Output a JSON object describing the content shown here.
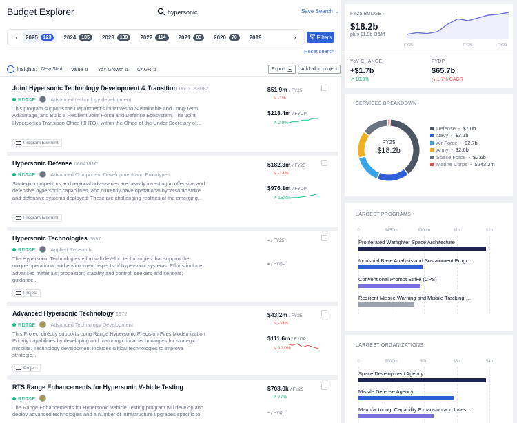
{
  "header": {
    "title": "Budget Explorer",
    "search_value": "hypersonic",
    "save_search": "Save Search"
  },
  "years": [
    {
      "year": "2025",
      "count": "123",
      "active": true
    },
    {
      "year": "2024",
      "count": "135"
    },
    {
      "year": "2023",
      "count": "139"
    },
    {
      "year": "2022",
      "count": "114"
    },
    {
      "year": "2021",
      "count": "83"
    },
    {
      "year": "2020",
      "count": "70"
    },
    {
      "year": "2019",
      "count": ""
    }
  ],
  "filters_label": "Filters",
  "reset_label": "Reset search",
  "toolbar": {
    "insights": "Insights:",
    "sorts": [
      "New Start",
      "Value",
      "YoY Growth",
      "CAGR"
    ],
    "export": "Export",
    "add_all": "Add all to project"
  },
  "cards": [
    {
      "title": "Joint Hypersonic Technology Development & Transition",
      "code": "0603183D8Z",
      "rdte": "RDT&E",
      "activity": "Advanced technology development",
      "desc": "This program supports the Department's initiatives to Sustainable and Long-Term Advantage, and Build a Resilient Joint Force and Defense Ecosystem. The Joint Hypersonics Transition Office (JHTO), within the Office of the Under Secretary of...",
      "type": "Program Element",
      "fy25": "$51.9m",
      "fy25_unit": "/ FY25",
      "fy25_chg": "↘ -1%",
      "fydp": "$218.4m",
      "fydp_unit": "/ FYDP",
      "fydp_chg": "↗ 2.0%",
      "spark": [
        3,
        4,
        4,
        5,
        5,
        6,
        6
      ],
      "neg": [
        true,
        false
      ]
    },
    {
      "title": "Hypersonic Defense",
      "code": "0604181C",
      "rdte": "RDT&E",
      "activity": "Advanced Component Development and Prototypes",
      "desc": "Strategic competitors and regional adversaries are heavily investing in offensive and defensive hypersonic capabilities, and currently have operational hypersonic strike and defensive systems deployed. These are challenging realities of the emerging...",
      "type": "Program Element",
      "fy25": "$182.3m",
      "fy25_unit": "/ FY25",
      "fy25_chg": "↘ -13%",
      "fydp": "$976.1m",
      "fydp_unit": "/ FYDP",
      "fydp_chg": "↗ 15.8%",
      "spark": [
        2,
        3,
        3,
        4,
        5,
        6,
        8
      ],
      "neg": [
        true,
        false
      ]
    },
    {
      "title": "Hypersonic Technologies",
      "code": "5897",
      "rdte": "RDT&E",
      "activity": "Applied Research",
      "desc": "The Hypersonic Technologies effort will develop technologies that support the unique operational and environment aspects of hypersonic systems. Efforts include: advanced materials; propulsion; stability and control; seekers and sensors; guidance...",
      "type": "Project",
      "fy25": "-",
      "fy25_unit": "/ FY25",
      "fy25_chg": "",
      "fydp": "-",
      "fydp_unit": "/ FYDP",
      "fydp_chg": "",
      "spark": [],
      "neg": [
        false,
        false
      ]
    },
    {
      "title": "Advanced Hypersonic Technology",
      "code": "1972",
      "rdte": "RDT&E",
      "activity": "Advanced Technology Development",
      "desc": "This Project directly supports Long Range Hypersonic Precision Fires Modernization Priority capabilities by developing and maturing critical technologies for strategic missiles. Technology development includes critical technologies to improve strategic...",
      "type": "Project",
      "fy25": "$43.2m",
      "fy25_unit": "/ FY25",
      "fy25_chg": "↘ -33%",
      "fydp": "$111.6m",
      "fydp_unit": "/ FYDP",
      "fydp_chg": "↘ 10.0%",
      "spark": [
        6,
        5,
        6,
        4,
        5,
        4,
        3
      ],
      "neg": [
        true,
        true
      ]
    },
    {
      "title": "RTS Range Enhancements for Hypersonic Vehicle Testing",
      "code": "",
      "rdte": "RDT&E",
      "activity": "",
      "desc": "The Range Enhancements for Hypersonic Vehicle Testing program will develop and deploy advanced technologies and a number of infrastructure upgrades specific to",
      "type": "",
      "fy25": "$708.0k",
      "fy25_unit": "/ FY25",
      "fy25_chg": "↗ 77%",
      "fydp": "-",
      "fydp_unit": "/ FYDP",
      "fydp_chg": "",
      "spark": [],
      "neg": [
        false,
        false
      ]
    }
  ],
  "summary": {
    "budget_label": "FY25 BUDGET",
    "budget_value": "$18.2b",
    "budget_sub": "plus $1.9b O&M",
    "trend_ticks": [
      "FY25",
      "FY25",
      "FY29"
    ],
    "trend": [
      4.5,
      4.7,
      4.6,
      4.8,
      5.6,
      6.2,
      6.0,
      6.3,
      6.6,
      6.7,
      6.9
    ],
    "yoy_label": "YoY CHANGE",
    "yoy_value": "+$1.7b",
    "yoy_chg": "↗ 10.0%",
    "fydp_label": "FYDP",
    "fydp_value": "$65.7b",
    "fydp_chg": "↘ 1.7% CAGR"
  },
  "services": {
    "title": "SERVICES BREAKDOWN",
    "center_label": "FY25",
    "center_value": "$18.2b",
    "items": [
      {
        "name": "Defense",
        "value": "$7.0b",
        "amount": 7.0,
        "color": "#4b5563"
      },
      {
        "name": "Navy",
        "value": "$3.1b",
        "amount": 3.1,
        "color": "#2f5fd6"
      },
      {
        "name": "Air Force",
        "value": "$2.7b",
        "amount": 2.7,
        "color": "#38a3e8"
      },
      {
        "name": "Army",
        "value": "$2.6b",
        "amount": 2.6,
        "color": "#f2b01e"
      },
      {
        "name": "Space Force",
        "value": "$2.6b",
        "amount": 2.6,
        "color": "#6b7280"
      },
      {
        "name": "Marine Corps",
        "value": "$243.2m",
        "amount": 0.243,
        "color": "#e05252"
      }
    ]
  },
  "largest_programs": {
    "title": "LARGEST PROGRAMS",
    "ticks": [
      "0",
      "$450m",
      "$900m",
      "$1b",
      "$2b"
    ],
    "max": 2.0,
    "items": [
      {
        "name": "Proliferated Warfighter Space Architecture",
        "value": 1.95,
        "color": "#1e2252"
      },
      {
        "name": "Industrial Base Analysis and Sustainment Progr...",
        "value": 0.98,
        "color": "#2f5fd6"
      },
      {
        "name": "Conventional Prompt Strike (CPS)",
        "value": 0.95,
        "color": "#7c6fe0"
      },
      {
        "name": "Resilient Missile Warning and Missile Tracking - ...",
        "value": 0.85,
        "color": "#9ca3af"
      }
    ]
  },
  "largest_orgs": {
    "title": "LARGEST ORGANIZATIONS",
    "ticks": [
      "0",
      "$900m",
      "$2b",
      "$3b",
      "$4b"
    ],
    "max": 4.0,
    "items": [
      {
        "name": "Space Development Agency",
        "value": 3.9,
        "color": "#1e2252"
      },
      {
        "name": "Missile Defense Agency",
        "value": 2.9,
        "color": "#2f5fd6"
      },
      {
        "name": "Manufacturing, Capability Expansion and Invest...",
        "value": 2.3,
        "color": "#7c6fe0"
      }
    ]
  }
}
